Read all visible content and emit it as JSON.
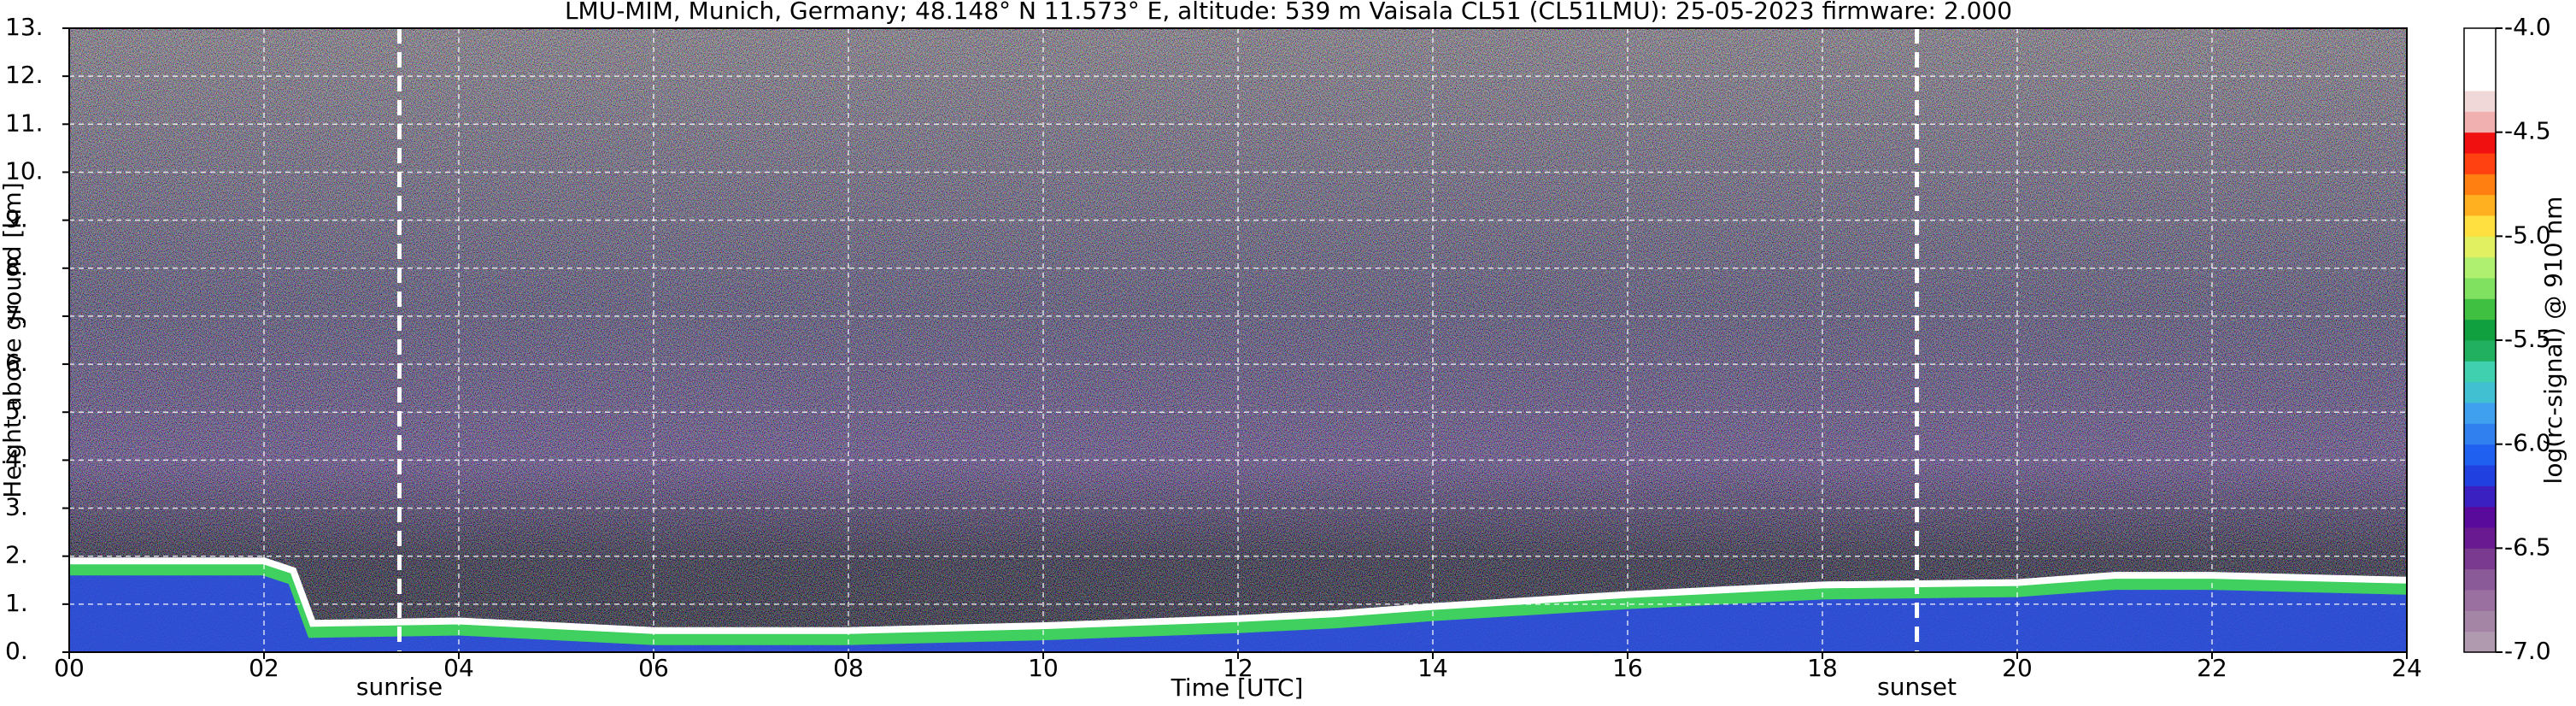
{
  "chart_data": {
    "type": "heatmap",
    "title": "LMU-MIM, Munich, Germany; 48.148° N 11.573° E, altitude: 539 m    Vaisala CL51 (CL51LMU): 25-05-2023    firmware: 2.000",
    "x_label": "Time [UTC]",
    "y_label": "Height above ground [km]",
    "xlim": [
      0,
      24
    ],
    "xticks": [
      {
        "value": 0,
        "label": "00"
      },
      {
        "value": 2,
        "label": "02"
      },
      {
        "value": 4,
        "label": "04"
      },
      {
        "value": 6,
        "label": "06"
      },
      {
        "value": 8,
        "label": "08"
      },
      {
        "value": 10,
        "label": "10"
      },
      {
        "value": 12,
        "label": "12"
      },
      {
        "value": 14,
        "label": "14"
      },
      {
        "value": 16,
        "label": "16"
      },
      {
        "value": 18,
        "label": "18"
      },
      {
        "value": 20,
        "label": "20"
      },
      {
        "value": 22,
        "label": "22"
      },
      {
        "value": 24,
        "label": "24"
      }
    ],
    "ylim": [
      0,
      13
    ],
    "yticks": [
      {
        "value": 0,
        "label": "0."
      },
      {
        "value": 1,
        "label": "1."
      },
      {
        "value": 2,
        "label": "2."
      },
      {
        "value": 3,
        "label": "3."
      },
      {
        "value": 4,
        "label": "4."
      },
      {
        "value": 5,
        "label": "5."
      },
      {
        "value": 6,
        "label": "6."
      },
      {
        "value": 7,
        "label": "7."
      },
      {
        "value": 8,
        "label": "8."
      },
      {
        "value": 9,
        "label": "9."
      },
      {
        "value": 10,
        "label": "10."
      },
      {
        "value": 11,
        "label": "11."
      },
      {
        "value": 12,
        "label": "12."
      },
      {
        "value": 13,
        "label": "13."
      }
    ],
    "grid": true,
    "annotations": [
      {
        "label": "sunrise",
        "x": 3.39
      },
      {
        "label": "sunset",
        "x": 18.97
      }
    ],
    "series": [
      {
        "name": "layer top",
        "color": "#ffffff",
        "x": [
          0,
          2,
          2.3,
          2.5,
          4,
          6,
          8,
          10,
          12,
          13,
          14,
          16,
          18,
          20,
          21,
          22,
          24
        ],
        "values": [
          1.9,
          1.9,
          1.7,
          0.6,
          0.65,
          0.45,
          0.45,
          0.55,
          0.7,
          0.8,
          0.95,
          1.2,
          1.4,
          1.45,
          1.6,
          1.6,
          1.5
        ]
      }
    ],
    "colorbar": {
      "label": "log(rc-signal) @ 910 nm",
      "lim": [
        -7,
        -4
      ],
      "ticks": [
        {
          "value": -4,
          "label": "-4.0"
        },
        -4.5,
        {
          "value": -5,
          "label": "-5.0"
        },
        -5.5,
        {
          "value": -6,
          "label": "-6.0"
        },
        -6.5,
        {
          "value": -7,
          "label": "-7.0"
        }
      ],
      "colors": [
        "#b09ab0",
        "#a585a5",
        "#9a70a0",
        "#8a5a98",
        "#7a3a90",
        "#6a1a90",
        "#5a0a9a",
        "#3a20c0",
        "#2040e0",
        "#2060f0",
        "#3080f0",
        "#40a0f0",
        "#40c0d0",
        "#40d0b0",
        "#20b060",
        "#10a040",
        "#40c040",
        "#80e060",
        "#b0f070",
        "#e0f060",
        "#ffe040",
        "#ffb020",
        "#ff8010",
        "#ff4010",
        "#f01010",
        "#f0b0b0",
        "#f0d8d8",
        "#ffffff",
        "#ffffff",
        "#ffffff"
      ]
    }
  }
}
